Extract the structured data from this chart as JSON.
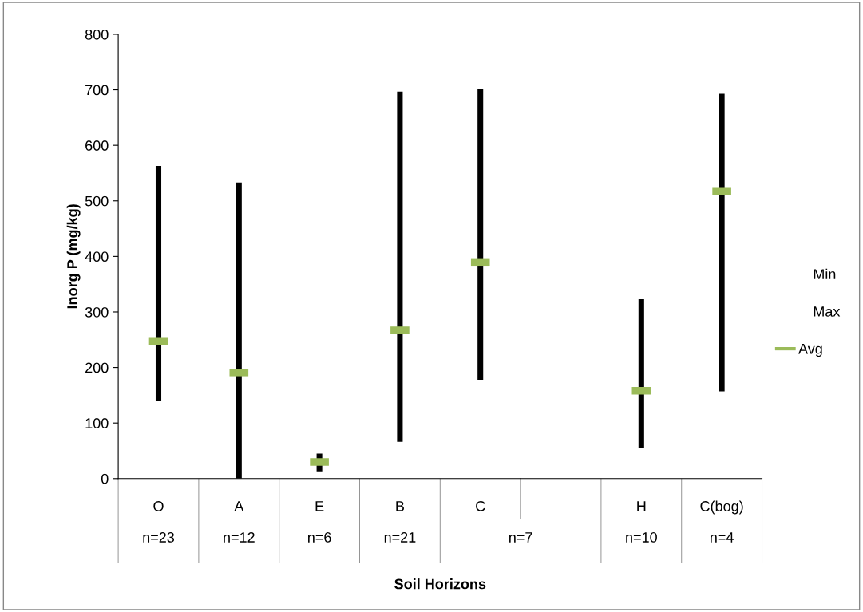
{
  "chart_data": {
    "type": "bar",
    "xlabel": "Soil Horizons",
    "ylabel": "Inorg P (mg/kg)",
    "categories": [
      "O",
      "A",
      "E",
      "B",
      "C",
      null,
      "H",
      "C(bog)"
    ],
    "ylim": [
      0,
      800
    ],
    "yticks": [
      0,
      100,
      200,
      300,
      400,
      500,
      600,
      700,
      800
    ],
    "series": [
      {
        "color": "#000000",
        "base": [
          140,
          0,
          13,
          66,
          178,
          null,
          55,
          157
        ],
        "values": [
          423,
          533,
          32,
          631,
          524,
          null,
          268,
          536
        ]
      },
      {
        "name": "Avg",
        "type": "scatter",
        "color": "#9bbb59",
        "x": [
          "O",
          "A",
          "E",
          "B",
          "C",
          null,
          "H",
          "C(bog)"
        ],
        "values": [
          248,
          191,
          30,
          267,
          390,
          null,
          158,
          518
        ]
      }
    ],
    "annotations": [
      "n=23",
      "n=12",
      "n=6",
      "n=21",
      "n=7",
      "n=10",
      "n=4",
      "Min",
      "Max"
    ],
    "legend": "right"
  }
}
